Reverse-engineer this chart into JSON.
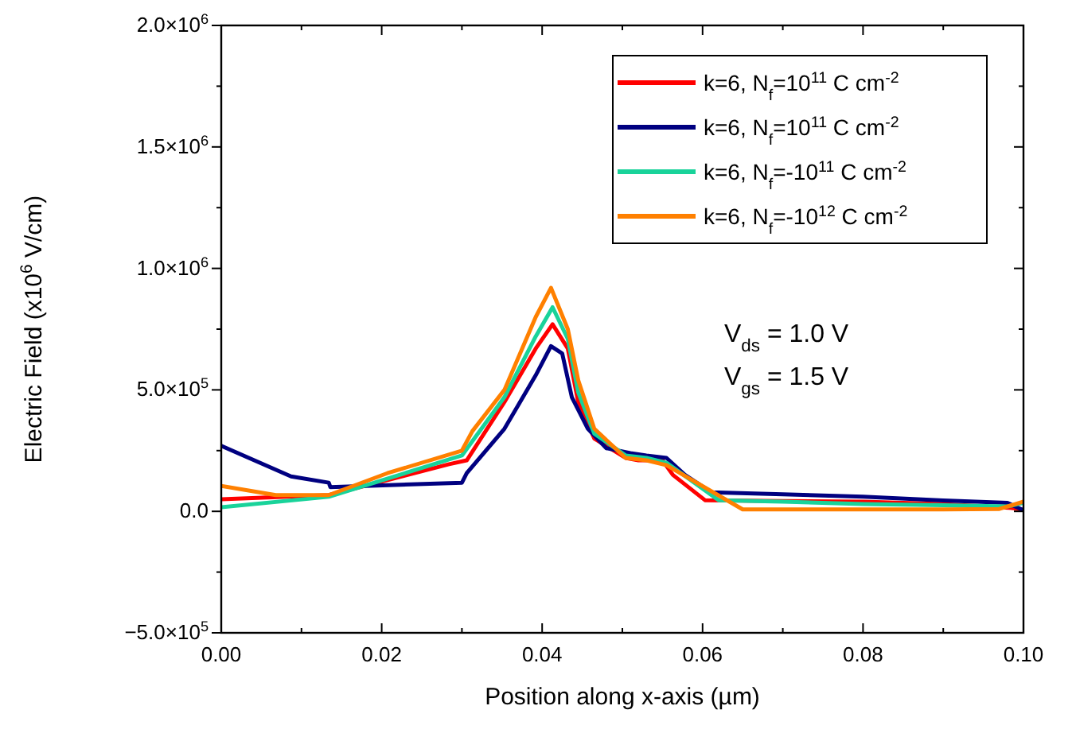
{
  "chart_data": {
    "type": "line",
    "xlabel": "Position along x-axis (µm)",
    "ylabel": "Electric Field (x10$^{6}$ V/cm)",
    "xlim": [
      0,
      0.1
    ],
    "xticks": [
      {
        "value": 0,
        "label": "0.00"
      },
      {
        "value": 0.01,
        "label": null
      },
      {
        "value": 0.02,
        "label": "0.02"
      },
      {
        "value": 0.03,
        "label": null
      },
      {
        "value": 0.04,
        "label": "0.04"
      },
      {
        "value": 0.05,
        "label": null
      },
      {
        "value": 0.06,
        "label": "0.06"
      },
      {
        "value": 0.07,
        "label": null
      },
      {
        "value": 0.08,
        "label": "0.08"
      },
      {
        "value": 0.09,
        "label": null
      },
      {
        "value": 0.1,
        "label": "0.10"
      }
    ],
    "ylim": [
      -500000,
      2000000
    ],
    "yticks": [
      {
        "value": -500000,
        "label": "−5.0×10$^{5}$"
      },
      {
        "value": -250000,
        "label": null
      },
      {
        "value": 0,
        "label": "0.0"
      },
      {
        "value": 250000,
        "label": null
      },
      {
        "value": 500000,
        "label": "5.0×10$^{5}$"
      },
      {
        "value": 750000,
        "label": null
      },
      {
        "value": 1000000,
        "label": "1.0×10$^{6}$"
      },
      {
        "value": 1250000,
        "label": null
      },
      {
        "value": 1500000,
        "label": "1.5×10$^{6}$"
      },
      {
        "value": 1750000,
        "label": null
      },
      {
        "value": 2000000,
        "label": "2.0×10$^{6}$"
      }
    ],
    "grid": false,
    "legend": "top right",
    "line_style": "solid",
    "marker": "none",
    "annotations": [
      "V$_{ds}$ = 1.0 V",
      "V$_{gs}$ = 1.5 V"
    ],
    "series": [
      {
        "name": "k=6, N$_{f}$=10$^{11}$ C cm$^{-2}$",
        "color": "#ff0000",
        "x": [
          0,
          0.0134,
          0.0284,
          0.0306,
          0.0353,
          0.0392,
          0.0413,
          0.0432,
          0.0445,
          0.0465,
          0.0504,
          0.052,
          0.055,
          0.0563,
          0.0603,
          0.07,
          0.08,
          0.09,
          0.0988,
          0.1
        ],
        "values": [
          50000,
          67000,
          194000,
          210000,
          450000,
          670000,
          770000,
          670000,
          450000,
          300000,
          220000,
          210000,
          210000,
          150000,
          46000,
          42000,
          40000,
          30000,
          13000,
          5000
        ]
      },
      {
        "name": "k=6, N$_{f}$=10$^{11}$ C cm$^{-2}$",
        "color": "#000080",
        "x": [
          0,
          0.0048,
          0.0087,
          0.0134,
          0.0136,
          0.03,
          0.0306,
          0.0353,
          0.0392,
          0.0411,
          0.0425,
          0.0437,
          0.0457,
          0.048,
          0.051,
          0.053,
          0.0555,
          0.0578,
          0.0611,
          0.07,
          0.08,
          0.09,
          0.098,
          0.1
        ],
        "values": [
          270000,
          200000,
          144000,
          118000,
          100000,
          118000,
          157000,
          340000,
          560000,
          680000,
          650000,
          470000,
          340000,
          260000,
          240000,
          230000,
          220000,
          150000,
          78000,
          70000,
          60000,
          45000,
          35000,
          5000
        ]
      },
      {
        "name": "k=6, N$_{f}$=-10$^{11}$ C cm$^{-2}$",
        "color": "#19d39a",
        "x": [
          0,
          0.0134,
          0.03,
          0.0353,
          0.0392,
          0.0413,
          0.0432,
          0.0445,
          0.0465,
          0.0504,
          0.053,
          0.0555,
          0.062,
          0.07,
          0.08,
          0.09,
          0.098,
          0.1
        ],
        "values": [
          17000,
          60000,
          230000,
          470000,
          720000,
          840000,
          710000,
          490000,
          320000,
          230000,
          220000,
          200000,
          46000,
          40000,
          30000,
          25000,
          20000,
          35000
        ]
      },
      {
        "name": "k=6, N$_{f}$=-10$^{12}$ C cm$^{-2}$",
        "color": "#ff8000",
        "x": [
          0,
          0.0068,
          0.0134,
          0.0207,
          0.03,
          0.0313,
          0.0353,
          0.0392,
          0.0411,
          0.0432,
          0.0445,
          0.0465,
          0.0504,
          0.053,
          0.0555,
          0.065,
          0.08,
          0.09,
          0.097,
          0.1
        ],
        "values": [
          105000,
          67000,
          67000,
          157000,
          250000,
          330000,
          500000,
          800000,
          920000,
          750000,
          540000,
          340000,
          220000,
          210000,
          190000,
          8000,
          8000,
          8000,
          10000,
          40000
        ]
      }
    ]
  }
}
